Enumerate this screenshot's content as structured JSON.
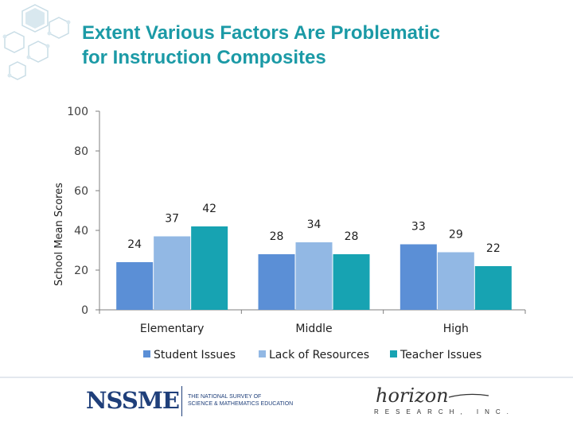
{
  "title_lines": [
    "Extent Various Factors Are Problematic",
    "for Instruction Composites"
  ],
  "colors": {
    "title": "#1b9aa6",
    "Student Issues": "#5b8fd6",
    "Lack of Resources": "#92b8e4",
    "Teacher Issues": "#17a3b2",
    "axis": "#7f7f7f",
    "logo": "#1f3f7a"
  },
  "chart_data": {
    "type": "bar",
    "title": "Extent Various Factors Are Problematic for Instruction Composites",
    "categories": [
      "Elementary",
      "Middle",
      "High"
    ],
    "series": [
      {
        "name": "Student Issues",
        "values": [
          24,
          28,
          33
        ]
      },
      {
        "name": "Lack of Resources",
        "values": [
          37,
          34,
          29
        ]
      },
      {
        "name": "Teacher Issues",
        "values": [
          42,
          28,
          22
        ]
      }
    ],
    "xlabel": "",
    "ylabel": "School Mean Scores",
    "ylim": [
      0,
      100
    ],
    "yticks": [
      0,
      20,
      40,
      60,
      80,
      100
    ],
    "grid": false,
    "legend": "bottom",
    "data_labels": true
  },
  "footer": {
    "nssme_logo": "NSSME",
    "nssme_sub_lines": [
      "THE NATIONAL SURVEY OF",
      "SCIENCE & MATHEMATICS EDUCATION"
    ],
    "horizon_logo_text": "horizon",
    "horizon_sub": "RESEARCH, INC."
  }
}
